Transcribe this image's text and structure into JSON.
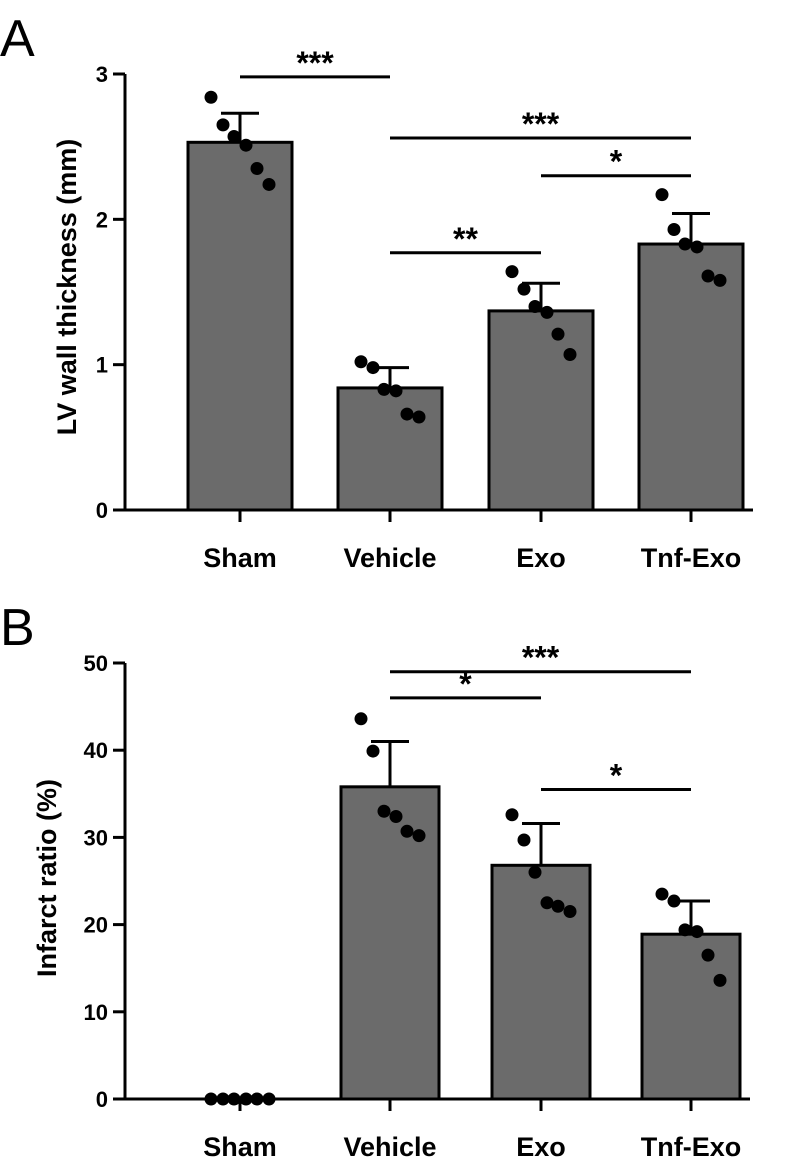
{
  "colors": {
    "bar": "#6b6b6b",
    "stroke": "#000000",
    "dot": "#000000",
    "background": "#ffffff"
  },
  "chart_data": [
    {
      "panel": "A",
      "type": "bar",
      "categories": [
        "Sham",
        "Vehicle",
        "Exo",
        "Tnf-Exo"
      ],
      "values": [
        2.53,
        0.84,
        1.37,
        1.83
      ],
      "errors": [
        0.2,
        0.14,
        0.19,
        0.21
      ],
      "points": [
        [
          2.84,
          2.65,
          2.57,
          2.51,
          2.35,
          2.24
        ],
        [
          1.02,
          0.98,
          0.83,
          0.82,
          0.66,
          0.64
        ],
        [
          1.64,
          1.52,
          1.4,
          1.36,
          1.21,
          1.07
        ],
        [
          2.17,
          1.93,
          1.83,
          1.81,
          1.61,
          1.58
        ]
      ],
      "xlabel": "",
      "ylabel": "LV wall thickness (mm)",
      "ylim": [
        0,
        3
      ],
      "yticks": [
        0,
        1,
        2,
        3
      ],
      "ytick_labels": [
        "0",
        "1",
        "2",
        "3"
      ],
      "grid": false,
      "significance": [
        {
          "from": 0,
          "to": 1,
          "label": "***",
          "y": 2.98
        },
        {
          "from": 1,
          "to": 3,
          "label": "***",
          "y": 2.56
        },
        {
          "from": 2,
          "to": 3,
          "label": "*",
          "y": 2.3
        },
        {
          "from": 1,
          "to": 2,
          "label": "**",
          "y": 1.77
        }
      ]
    },
    {
      "panel": "B",
      "type": "bar",
      "categories": [
        "Sham",
        "Vehicle",
        "Exo",
        "Tnf-Exo"
      ],
      "values": [
        0,
        35.8,
        26.8,
        18.9
      ],
      "errors": [
        0,
        5.2,
        4.8,
        3.8
      ],
      "points": [
        [
          0,
          0,
          0,
          0,
          0,
          0
        ],
        [
          43.6,
          39.9,
          33.0,
          32.4,
          30.7,
          30.2
        ],
        [
          32.6,
          29.7,
          26.0,
          22.5,
          22.1,
          21.5
        ],
        [
          23.5,
          22.7,
          19.4,
          19.2,
          16.5,
          13.6
        ]
      ],
      "xlabel": "",
      "ylabel": "Infarct ratio (%)",
      "ylim": [
        0,
        50
      ],
      "yticks": [
        0,
        10,
        20,
        30,
        40,
        50
      ],
      "ytick_labels": [
        "0",
        "10",
        "20",
        "30",
        "40",
        "50"
      ],
      "grid": false,
      "significance": [
        {
          "from": 1,
          "to": 3,
          "label": "***",
          "y": 49.0
        },
        {
          "from": 1,
          "to": 2,
          "label": "*",
          "y": 46.0
        },
        {
          "from": 2,
          "to": 3,
          "label": "*",
          "y": 35.5
        }
      ]
    }
  ]
}
